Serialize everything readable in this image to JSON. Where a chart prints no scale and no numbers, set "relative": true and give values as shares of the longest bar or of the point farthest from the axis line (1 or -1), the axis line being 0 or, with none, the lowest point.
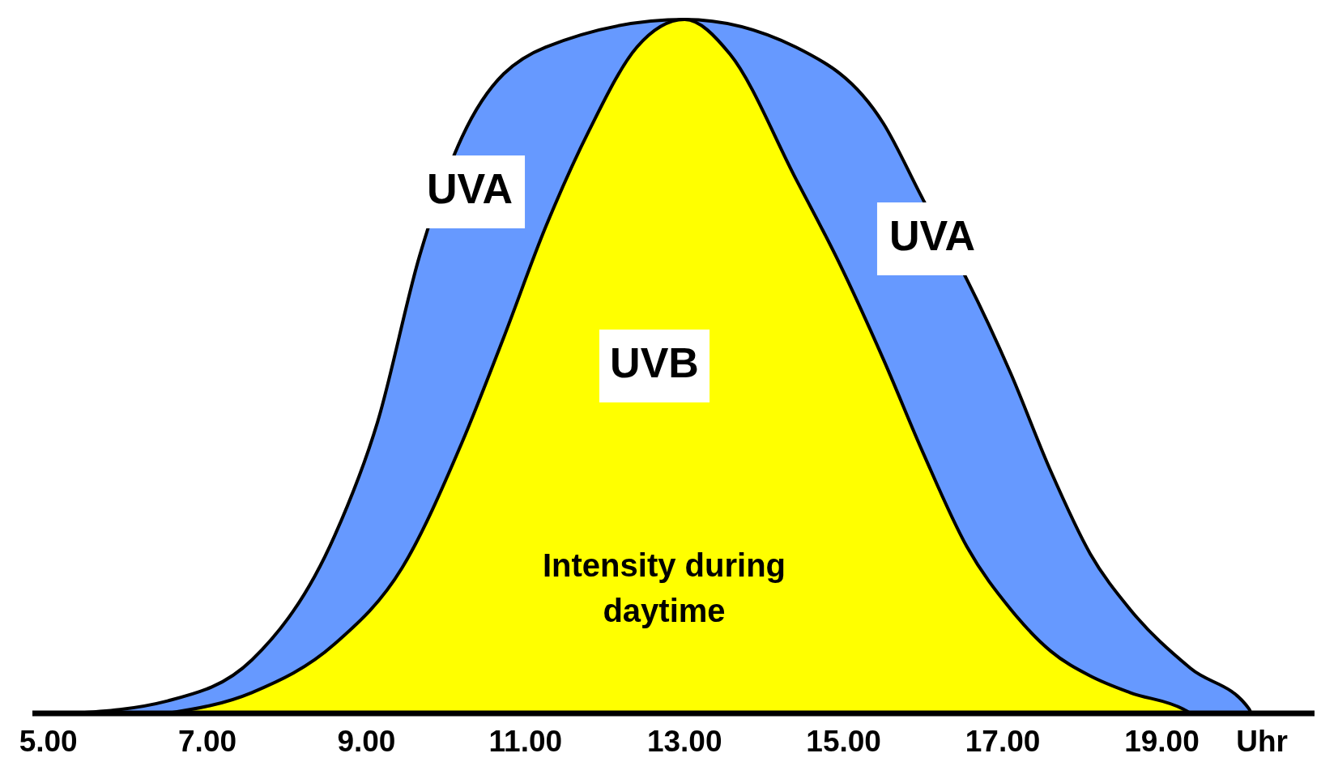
{
  "chart_data": {
    "type": "area",
    "relative": true,
    "xlabel": "Uhr",
    "xlim": [
      4.8,
      20.92
    ],
    "xticks": [
      {
        "value": 5,
        "label": "5.00"
      },
      {
        "value": 7,
        "label": "7.00"
      },
      {
        "value": 9,
        "label": "9.00"
      },
      {
        "value": 11,
        "label": "11.00"
      },
      {
        "value": 13,
        "label": "13.00"
      },
      {
        "value": 15,
        "label": "15.00"
      },
      {
        "value": 17,
        "label": "17.00"
      },
      {
        "value": 19,
        "label": "19.00"
      }
    ],
    "series": [
      {
        "color": "#6699ff",
        "x": [
          5.3,
          6.5,
          7.56,
          8.6,
          9.14,
          9.67,
          10.2,
          11.25,
          13,
          14.4,
          15.5,
          16,
          16.55,
          17.1,
          17.6,
          18.1,
          18.6,
          19.36,
          20.1,
          20.12
        ],
        "values": [
          0,
          0.018,
          0.077,
          0.256,
          0.42,
          0.66,
          0.83,
          0.96,
          1,
          0.96,
          0.85,
          0.74,
          0.625,
          0.49,
          0.35,
          0.23,
          0.15,
          0.065,
          0.006,
          0
        ]
      },
      {
        "color": "#ffff00",
        "x": [
          6.5,
          7.56,
          8.6,
          9.45,
          10.2,
          10.72,
          11.25,
          11.8,
          12.4,
          13,
          13.57,
          14.4,
          14.94,
          15.5,
          16,
          16.55,
          17.1,
          17.6,
          18.1,
          18.6,
          19.27,
          19.36
        ],
        "values": [
          0,
          0.03,
          0.1,
          0.21,
          0.39,
          0.54,
          0.7,
          0.84,
          0.96,
          1,
          0.95,
          0.77,
          0.65,
          0.51,
          0.375,
          0.24,
          0.15,
          0.09,
          0.054,
          0.03,
          0.006,
          0
        ]
      }
    ],
    "annotations": [
      "UVA",
      "UVA",
      "UVB",
      "Intensity during daytime"
    ]
  }
}
